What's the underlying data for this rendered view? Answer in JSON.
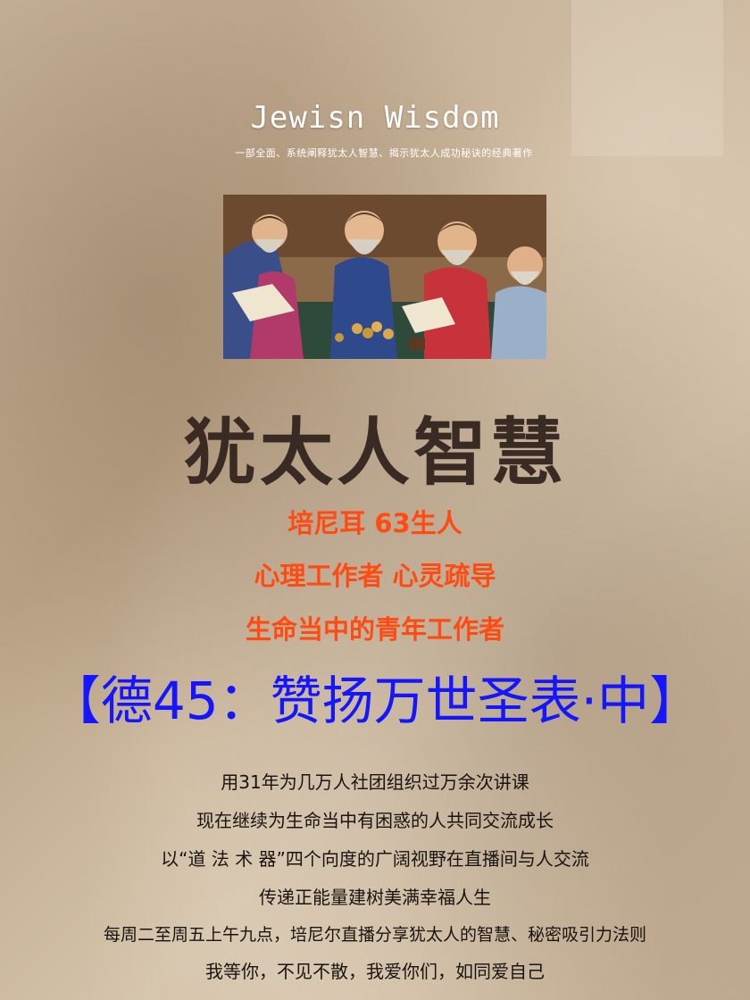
{
  "cover": {
    "brand_title": "Jewisn Wisdom",
    "brand_subtitle": "一部全面、系统阐释犹太人智慧、揭示犹太人成功秘诀的经典著作",
    "main_title": "犹太人智慧",
    "promo_lines": [
      "培尼耳 63生人",
      "心理工作者 心灵疏导",
      "生命当中的青年工作者"
    ],
    "series_banner": "【德45：赞扬万世圣表·中】",
    "description_lines": [
      "用31年为几万人社团组织过万余次讲课",
      "现在继续为生命当中有困惑的人共同交流成长",
      "以“道 法 术 器”四个向度的广阔视野在直播间与人交流",
      "传递正能量建树美满幸福人生",
      "每周二至周五上午九点，培尼尔直播分享犹太人的智慧、秘密吸引力法则",
      "我等你，不见不散，我爱你们，如同爱自己"
    ]
  },
  "colors": {
    "promo": "#ff4a12",
    "banner": "#1515ff",
    "title": "#3a2a24"
  }
}
